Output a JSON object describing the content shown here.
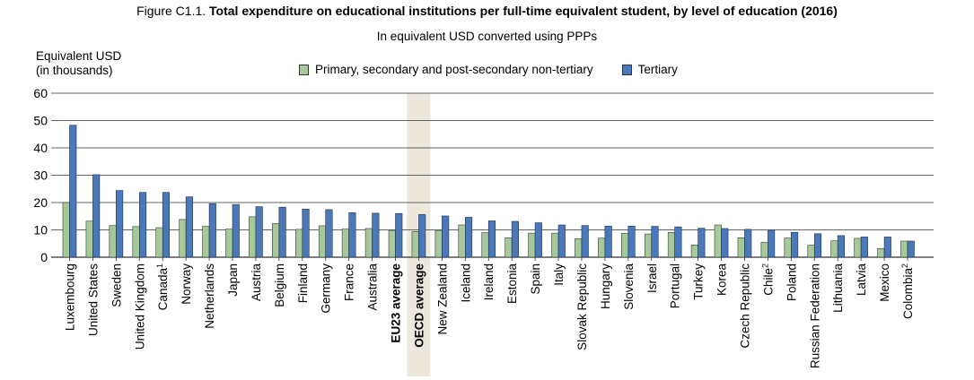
{
  "header": {
    "title_prefix": "Figure C1.1.",
    "title_main": "Total expenditure on educational institutions per full-time equivalent student, by level of education (2016)",
    "subtitle": "In equivalent USD converted using PPPs",
    "ylabel_line1": "Equivalent USD",
    "ylabel_line2": "(in thousands)"
  },
  "legend": {
    "primary_label": "Primary, secondary and post-secondary non-tertiary",
    "tertiary_label": "Tertiary"
  },
  "colors": {
    "primary": "#a6c89a",
    "tertiary": "#4a78b8",
    "highlight": "#ece8dc",
    "grid": "#333333"
  },
  "chart_data": {
    "type": "bar",
    "ylim": [
      0,
      60
    ],
    "yticks": [
      "0",
      "10",
      "20",
      "30",
      "40",
      "50",
      "60"
    ],
    "grid": true,
    "legend_position": "top-center",
    "highlighted_category": "OECD average",
    "categories": [
      {
        "label": "Luxembourg",
        "sup": "",
        "bold": false
      },
      {
        "label": "United States",
        "sup": "",
        "bold": false
      },
      {
        "label": "Sweden",
        "sup": "",
        "bold": false
      },
      {
        "label": "United Kingdom",
        "sup": "",
        "bold": false
      },
      {
        "label": "Canada",
        "sup": "1",
        "bold": false
      },
      {
        "label": "Norway",
        "sup": "",
        "bold": false
      },
      {
        "label": "Netherlands",
        "sup": "",
        "bold": false
      },
      {
        "label": "Japan",
        "sup": "",
        "bold": false
      },
      {
        "label": "Austria",
        "sup": "",
        "bold": false
      },
      {
        "label": "Belgium",
        "sup": "",
        "bold": false
      },
      {
        "label": "Finland",
        "sup": "",
        "bold": false
      },
      {
        "label": "Germany",
        "sup": "",
        "bold": false
      },
      {
        "label": "France",
        "sup": "",
        "bold": false
      },
      {
        "label": "Australia",
        "sup": "",
        "bold": false
      },
      {
        "label": "EU23 average",
        "sup": "",
        "bold": true
      },
      {
        "label": "OECD average",
        "sup": "",
        "bold": true
      },
      {
        "label": "New Zealand",
        "sup": "",
        "bold": false
      },
      {
        "label": "Iceland",
        "sup": "",
        "bold": false
      },
      {
        "label": "Ireland",
        "sup": "",
        "bold": false
      },
      {
        "label": "Estonia",
        "sup": "",
        "bold": false
      },
      {
        "label": "Spain",
        "sup": "",
        "bold": false
      },
      {
        "label": "Italy",
        "sup": "",
        "bold": false
      },
      {
        "label": "Slovak Republic",
        "sup": "",
        "bold": false
      },
      {
        "label": "Hungary",
        "sup": "",
        "bold": false
      },
      {
        "label": "Slovenia",
        "sup": "",
        "bold": false
      },
      {
        "label": "Israel",
        "sup": "",
        "bold": false
      },
      {
        "label": "Portugal",
        "sup": "",
        "bold": false
      },
      {
        "label": "Turkey",
        "sup": "",
        "bold": false
      },
      {
        "label": "Korea",
        "sup": "",
        "bold": false
      },
      {
        "label": "Czech Republic",
        "sup": "",
        "bold": false
      },
      {
        "label": "Chile",
        "sup": "2",
        "bold": false
      },
      {
        "label": "Poland",
        "sup": "",
        "bold": false
      },
      {
        "label": "Russian Federation",
        "sup": "",
        "bold": false
      },
      {
        "label": "Lithuania",
        "sup": "",
        "bold": false
      },
      {
        "label": "Latvia",
        "sup": "",
        "bold": false
      },
      {
        "label": "Mexico",
        "sup": "",
        "bold": false
      },
      {
        "label": "Colombia",
        "sup": "2",
        "bold": false
      }
    ],
    "series": [
      {
        "name": "Primary, secondary and post-secondary non-tertiary",
        "values": [
          20.0,
          13.2,
          11.6,
          11.2,
          10.8,
          13.8,
          11.3,
          10.3,
          14.8,
          12.3,
          10.2,
          11.5,
          10.3,
          10.5,
          9.8,
          9.4,
          9.8,
          11.8,
          9.0,
          7.1,
          8.8,
          8.8,
          6.8,
          7.0,
          8.7,
          8.5,
          9.1,
          4.5,
          11.8,
          7.1,
          5.5,
          7.0,
          4.4,
          6.0,
          6.9,
          3.2,
          5.9
        ]
      },
      {
        "name": "Tertiary",
        "values": [
          48.3,
          30.2,
          24.4,
          23.7,
          23.7,
          22.1,
          19.6,
          19.3,
          18.5,
          18.3,
          17.6,
          17.4,
          16.3,
          16.1,
          16.0,
          15.6,
          15.1,
          14.6,
          13.3,
          13.1,
          12.6,
          11.8,
          11.6,
          11.4,
          11.4,
          11.3,
          11.1,
          10.6,
          10.5,
          10.2,
          9.9,
          9.1,
          8.6,
          7.9,
          7.4,
          7.4,
          5.9
        ]
      }
    ]
  }
}
